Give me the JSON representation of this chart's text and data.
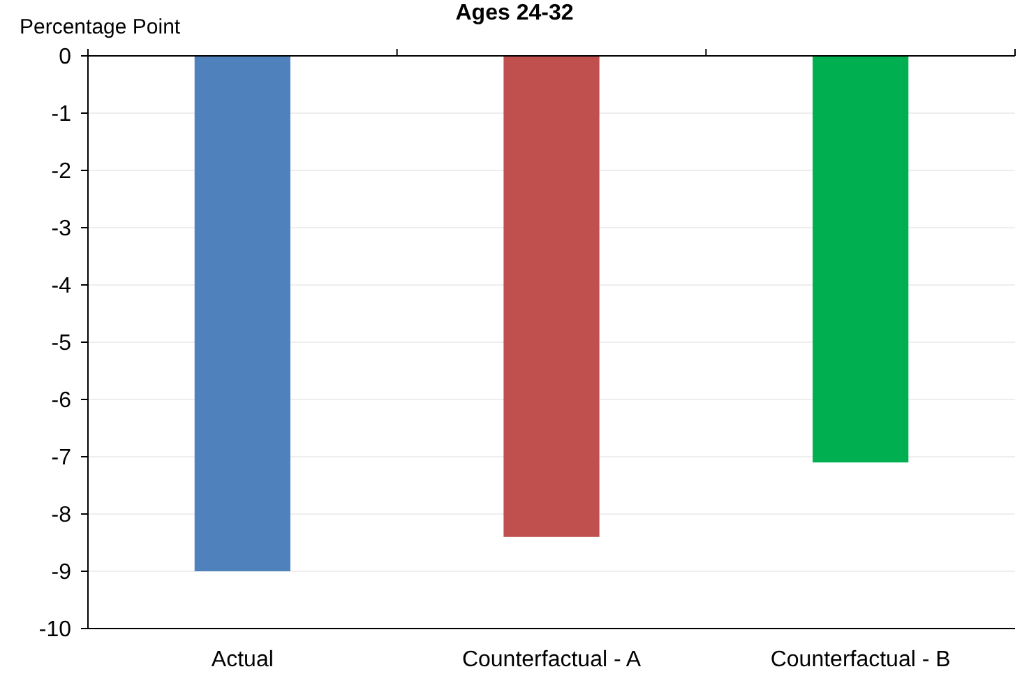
{
  "chart_data": {
    "type": "bar",
    "title": "Ages 24-32",
    "ylabel": "Percentage Point",
    "categories": [
      "Actual",
      "Counterfactual - A",
      "Counterfactual - B"
    ],
    "values": [
      -9,
      -8.4,
      -7.1
    ],
    "colors": [
      "#4f81bd",
      "#c0504d",
      "#00b050"
    ],
    "ylim": [
      -10,
      0
    ],
    "yticks": [
      -10,
      -9,
      -8,
      -7,
      -6,
      -5,
      -4,
      -3,
      -2,
      -1,
      0
    ],
    "grid": "y"
  }
}
